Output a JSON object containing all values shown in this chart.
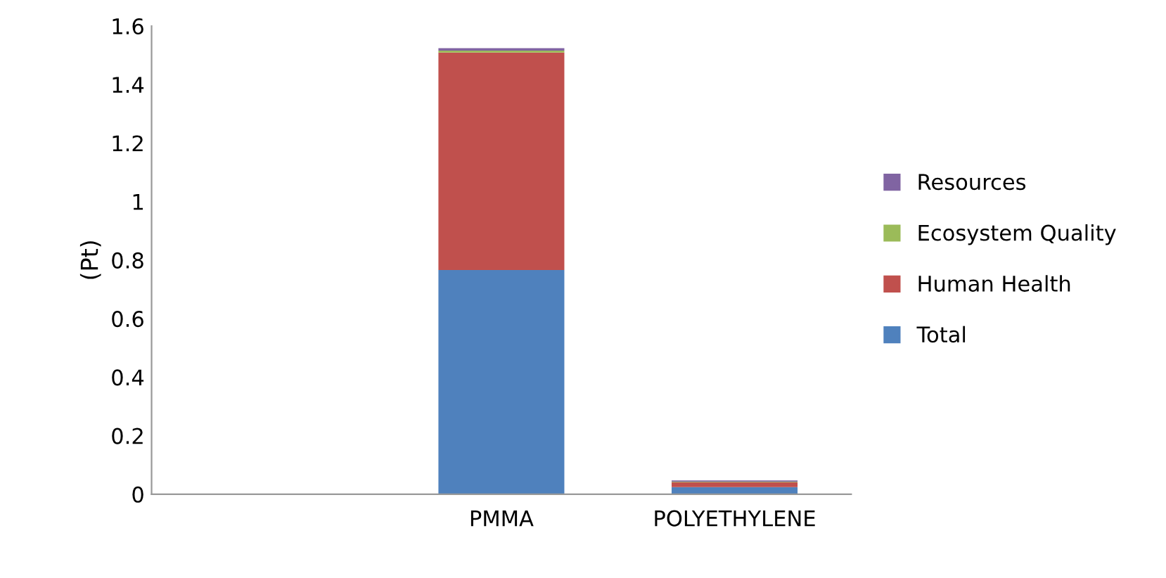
{
  "chart_data": {
    "type": "bar",
    "stacked": true,
    "ylabel": "(Pt)",
    "categories": [
      null,
      "PMMA",
      "POLYETHYLENE"
    ],
    "series": [
      {
        "name": "Total",
        "color": "#4f81bd",
        "values": [
          0,
          0.766,
          0.024
        ]
      },
      {
        "name": "Human Health",
        "color": "#c0504d",
        "values": [
          0,
          0.743,
          0.017
        ]
      },
      {
        "name": "Ecosystem Quality",
        "color": "#9bbb59",
        "values": [
          0,
          0.007,
          0.002
        ]
      },
      {
        "name": "Resources",
        "color": "#8064a2",
        "values": [
          0,
          0.008,
          0.004
        ]
      }
    ],
    "ylim": [
      0,
      1.6
    ],
    "yticks": [
      0,
      0.2,
      0.4,
      0.6,
      0.8,
      1,
      1.2,
      1.4,
      1.6
    ],
    "grid": false,
    "legend": "right"
  }
}
